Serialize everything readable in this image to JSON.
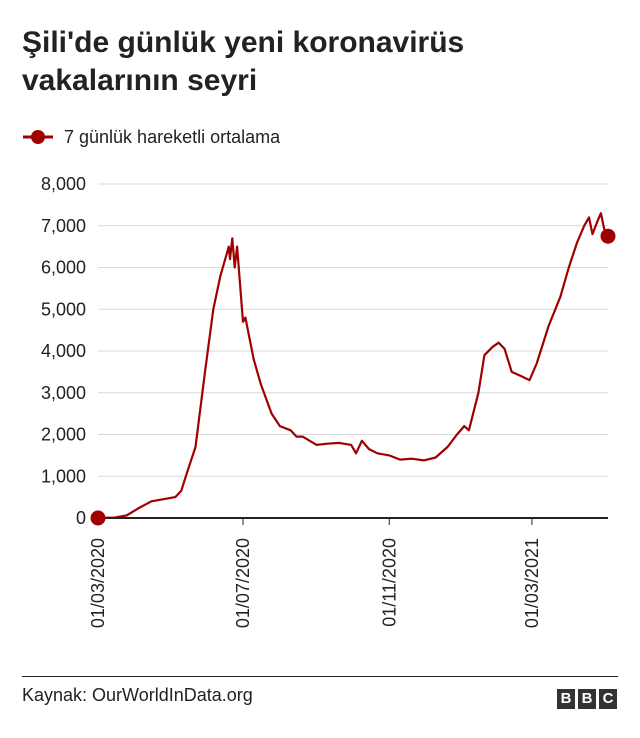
{
  "title": "Şili'de günlük yeni koronavirüs vakalarının seyri",
  "source": "Kaynak: OurWorldInData.org",
  "logo_letters": [
    "B",
    "B",
    "C"
  ],
  "colors": {
    "series": "#a00000",
    "grid": "#d9d9d9",
    "axis": "#222222",
    "text": "#222222"
  },
  "chart_data": {
    "type": "line",
    "title": "Şili'de günlük yeni koronavirüs vakalarının seyri",
    "xlabel": "",
    "ylabel": "",
    "ylim": [
      0,
      8000
    ],
    "yticks": [
      0,
      1000,
      2000,
      3000,
      4000,
      5000,
      6000,
      7000,
      8000
    ],
    "ytick_labels": [
      "0",
      "1,000",
      "2,000",
      "3,000",
      "4,000",
      "5,000",
      "6,000",
      "7,000",
      "8,000"
    ],
    "xlim": [
      "2020-03-01",
      "2021-05-04"
    ],
    "xticks": [
      "2020-03-01",
      "2020-07-01",
      "2020-11-01",
      "2021-03-01"
    ],
    "xtick_labels": [
      "01/03/2020",
      "01/07/2020",
      "01/11/2020",
      "01/03/2021"
    ],
    "grid": true,
    "legend_position": "top-left",
    "series": [
      {
        "name": "7 günlük hareketli ortalama",
        "markers": "first-and-last",
        "points": [
          [
            "2020-03-01",
            0
          ],
          [
            "2020-03-15",
            10
          ],
          [
            "2020-03-25",
            60
          ],
          [
            "2020-04-05",
            250
          ],
          [
            "2020-04-15",
            400
          ],
          [
            "2020-04-25",
            450
          ],
          [
            "2020-05-05",
            500
          ],
          [
            "2020-05-10",
            650
          ],
          [
            "2020-05-15",
            1100
          ],
          [
            "2020-05-22",
            1700
          ],
          [
            "2020-05-30",
            3500
          ],
          [
            "2020-06-06",
            5000
          ],
          [
            "2020-06-12",
            5800
          ],
          [
            "2020-06-17",
            6300
          ],
          [
            "2020-06-19",
            6500
          ],
          [
            "2020-06-20",
            6200
          ],
          [
            "2020-06-22",
            6700
          ],
          [
            "2020-06-24",
            6000
          ],
          [
            "2020-06-26",
            6500
          ],
          [
            "2020-06-29",
            5400
          ],
          [
            "2020-07-01",
            4700
          ],
          [
            "2020-07-03",
            4800
          ],
          [
            "2020-07-10",
            3800
          ],
          [
            "2020-07-16",
            3200
          ],
          [
            "2020-07-25",
            2500
          ],
          [
            "2020-08-01",
            2200
          ],
          [
            "2020-08-10",
            2100
          ],
          [
            "2020-08-15",
            1950
          ],
          [
            "2020-08-20",
            1950
          ],
          [
            "2020-09-01",
            1750
          ],
          [
            "2020-09-10",
            1780
          ],
          [
            "2020-09-20",
            1800
          ],
          [
            "2020-09-30",
            1750
          ],
          [
            "2020-10-04",
            1550
          ],
          [
            "2020-10-09",
            1850
          ],
          [
            "2020-10-15",
            1650
          ],
          [
            "2020-10-22",
            1550
          ],
          [
            "2020-11-01",
            1500
          ],
          [
            "2020-11-10",
            1400
          ],
          [
            "2020-11-20",
            1420
          ],
          [
            "2020-11-30",
            1380
          ],
          [
            "2020-12-10",
            1450
          ],
          [
            "2020-12-20",
            1700
          ],
          [
            "2020-12-28",
            2000
          ],
          [
            "2021-01-03",
            2200
          ],
          [
            "2021-01-07",
            2100
          ],
          [
            "2021-01-15",
            3000
          ],
          [
            "2021-01-20",
            3900
          ],
          [
            "2021-01-27",
            4100
          ],
          [
            "2021-02-01",
            4200
          ],
          [
            "2021-02-06",
            4050
          ],
          [
            "2021-02-12",
            3500
          ],
          [
            "2021-02-20",
            3400
          ],
          [
            "2021-02-27",
            3300
          ],
          [
            "2021-03-05",
            3700
          ],
          [
            "2021-03-15",
            4600
          ],
          [
            "2021-03-25",
            5300
          ],
          [
            "2021-04-01",
            6000
          ],
          [
            "2021-04-08",
            6600
          ],
          [
            "2021-04-14",
            7000
          ],
          [
            "2021-04-18",
            7200
          ],
          [
            "2021-04-21",
            6800
          ],
          [
            "2021-04-25",
            7100
          ],
          [
            "2021-04-28",
            7300
          ],
          [
            "2021-05-01",
            6900
          ],
          [
            "2021-05-04",
            6750
          ]
        ]
      }
    ]
  }
}
